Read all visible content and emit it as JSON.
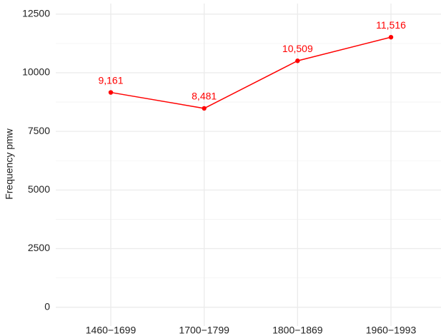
{
  "chart_data": {
    "type": "line",
    "y_label": "Frequency pmw",
    "categories": [
      "1460−1699",
      "1700−1799",
      "1800−1869",
      "1960−1993"
    ],
    "values": [
      9161,
      8481,
      10509,
      11516
    ],
    "value_labels": [
      "9,161",
      "8,481",
      "10,509",
      "11,516"
    ],
    "color": "#ff0000",
    "ylim": [
      -800,
      12950
    ],
    "yticks": [
      0,
      2500,
      5000,
      7500,
      10000,
      12500
    ],
    "grid": true,
    "minor_grid": true
  }
}
